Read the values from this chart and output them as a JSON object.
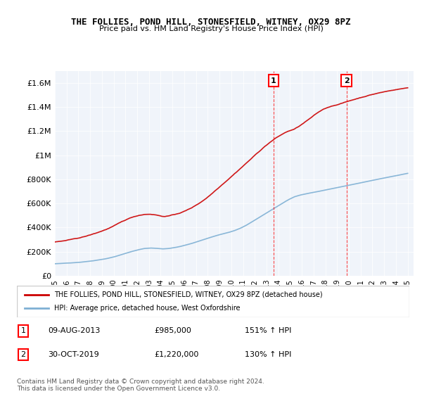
{
  "title": "THE FOLLIES, POND HILL, STONESFIELD, WITNEY, OX29 8PZ",
  "subtitle": "Price paid vs. HM Land Registry's House Price Index (HPI)",
  "ylabel": "",
  "ylim": [
    0,
    1700000
  ],
  "yticks": [
    0,
    200000,
    400000,
    600000,
    800000,
    1000000,
    1200000,
    1400000,
    1600000
  ],
  "ytick_labels": [
    "£0",
    "£200K",
    "£400K",
    "£600K",
    "£800K",
    "£1M",
    "£1.2M",
    "£1.4M",
    "£1.6M"
  ],
  "hpi_color": "#7eb0d4",
  "price_color": "#cc0000",
  "marker1_date_idx": 18.6,
  "marker1_price": 985000,
  "marker2_date_idx": 24.8,
  "marker2_price": 1220000,
  "legend_property": "THE FOLLIES, POND HILL, STONESFIELD, WITNEY, OX29 8PZ (detached house)",
  "legend_hpi": "HPI: Average price, detached house, West Oxfordshire",
  "table_row1": [
    "1",
    "09-AUG-2013",
    "£985,000",
    "151% ↑ HPI"
  ],
  "table_row2": [
    "2",
    "30-OCT-2019",
    "£1,220,000",
    "130% ↑ HPI"
  ],
  "footer": "Contains HM Land Registry data © Crown copyright and database right 2024.\nThis data is licensed under the Open Government Licence v3.0.",
  "background_color": "#f0f4fa"
}
